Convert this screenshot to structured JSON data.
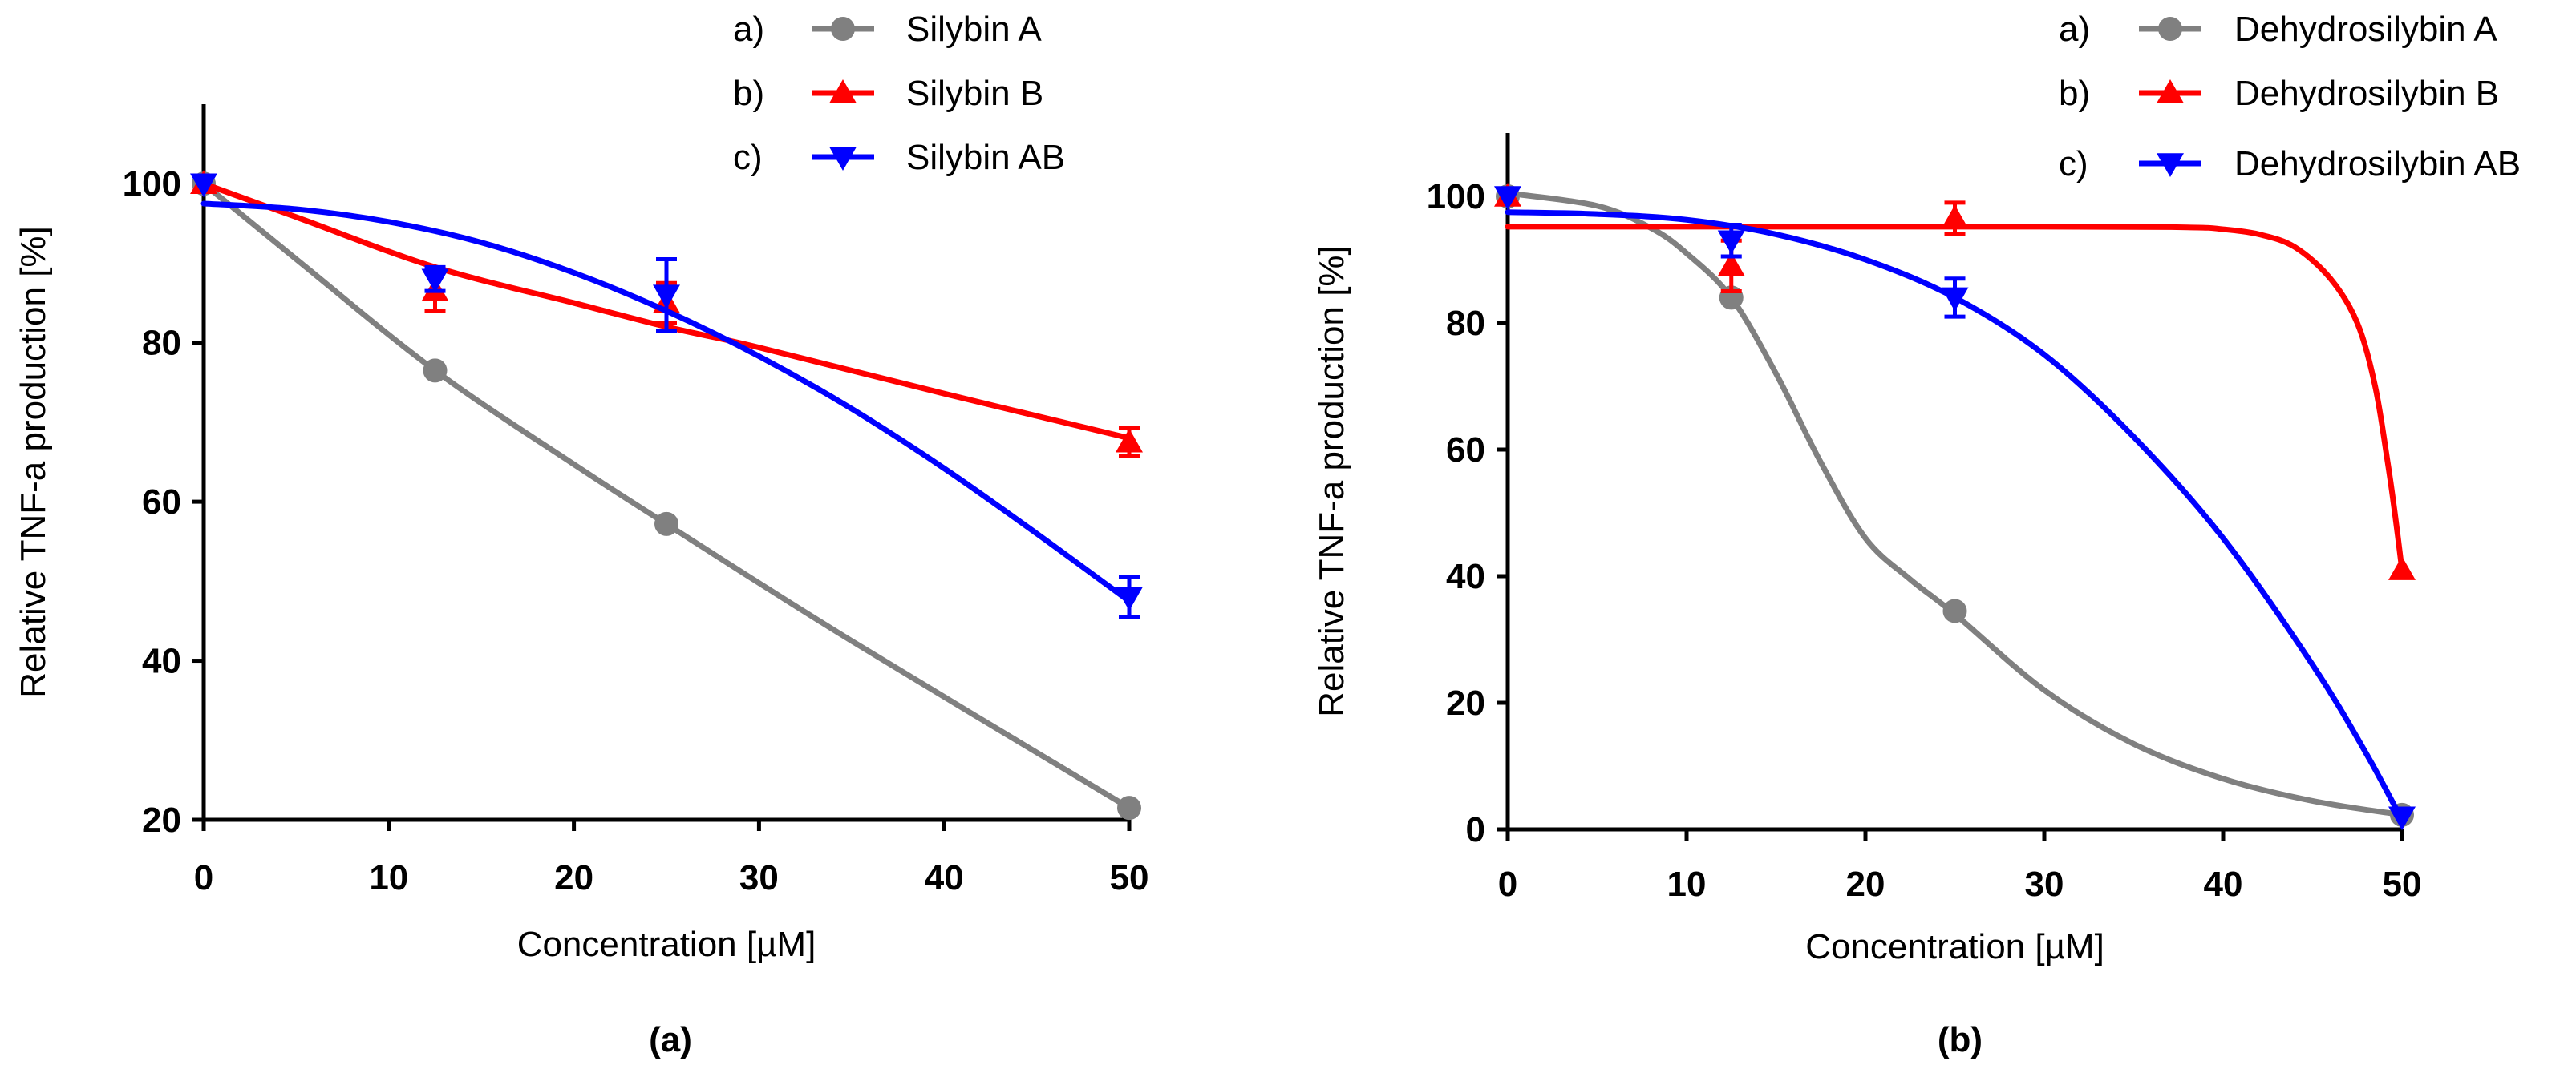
{
  "chart_data": [
    {
      "type": "line",
      "panel_label": "(a)",
      "xlabel": "Concentration [µM]",
      "ylabel": "Relative TNF-a production [%]",
      "xlim": [
        0,
        50
      ],
      "ylim": [
        20,
        110
      ],
      "xticks": [
        0,
        10,
        20,
        30,
        40,
        50
      ],
      "yticks": [
        20,
        40,
        60,
        80,
        100
      ],
      "legend_position": "top-right",
      "series": [
        {
          "name": "Silybin A",
          "prefix": "a)",
          "color": "#808080",
          "marker": "circle",
          "points": [
            {
              "x": 0,
              "y": 100,
              "err": 0
            },
            {
              "x": 12.5,
              "y": 76.5,
              "err": 0
            },
            {
              "x": 25,
              "y": 57.2,
              "err": 0
            },
            {
              "x": 50,
              "y": 21.5,
              "err": 0
            }
          ],
          "curve": [
            [
              0,
              100
            ],
            [
              5,
              90.5
            ],
            [
              12.5,
              76.5
            ],
            [
              20,
              64.7
            ],
            [
              25,
              57.2
            ],
            [
              35,
              42.5
            ],
            [
              50,
              21.5
            ]
          ]
        },
        {
          "name": "Silybin B",
          "prefix": "b)",
          "color": "#ff0000",
          "marker": "triangle-up",
          "points": [
            {
              "x": 0,
              "y": 100,
              "err": 0
            },
            {
              "x": 12.5,
              "y": 86.5,
              "err": 2.5
            },
            {
              "x": 25,
              "y": 85,
              "err": 2.5
            },
            {
              "x": 50,
              "y": 67.5,
              "err": 1.8
            }
          ],
          "curve": [
            [
              0,
              100
            ],
            [
              5,
              95.8
            ],
            [
              12.5,
              89.5
            ],
            [
              20,
              85
            ],
            [
              25,
              82
            ],
            [
              30,
              79.4
            ],
            [
              40,
              73.6
            ],
            [
              50,
              68
            ]
          ]
        },
        {
          "name": "Silybin AB",
          "prefix": "c)",
          "color": "#0000ff",
          "marker": "triangle-down",
          "points": [
            {
              "x": 0,
              "y": 100,
              "err": 0
            },
            {
              "x": 12.5,
              "y": 88,
              "err": 1.5
            },
            {
              "x": 25,
              "y": 86,
              "err": 4.5
            },
            {
              "x": 50,
              "y": 48,
              "err": 2.5
            }
          ],
          "curve": [
            [
              0,
              97.5
            ],
            [
              5,
              96.8
            ],
            [
              10,
              95.2
            ],
            [
              15,
              92.6
            ],
            [
              20,
              88.8
            ],
            [
              25,
              84
            ],
            [
              30,
              78.3
            ],
            [
              35,
              71.7
            ],
            [
              40,
              64.2
            ],
            [
              45,
              56
            ],
            [
              50,
              47.5
            ]
          ]
        }
      ]
    },
    {
      "type": "line",
      "panel_label": "(b)",
      "xlabel": "Concentration [µM]",
      "ylabel": "Relative TNF-a production [%]",
      "xlim": [
        0,
        50
      ],
      "ylim": [
        0,
        110
      ],
      "xticks": [
        0,
        10,
        20,
        30,
        40,
        50
      ],
      "yticks": [
        0,
        20,
        40,
        60,
        80,
        100
      ],
      "legend_position": "top-right",
      "series": [
        {
          "name": "Dehydrosilybin A",
          "prefix": "a)",
          "color": "#808080",
          "marker": "circle",
          "points": [
            {
              "x": 0,
              "y": 100,
              "err": 0
            },
            {
              "x": 12.5,
              "y": 84,
              "err": 0
            },
            {
              "x": 25,
              "y": 34.5,
              "err": 0
            },
            {
              "x": 50,
              "y": 2.3,
              "err": 0
            }
          ],
          "curve": [
            [
              0,
              100.5
            ],
            [
              5,
              98.5
            ],
            [
              8,
              95
            ],
            [
              10,
              91
            ],
            [
              12.5,
              84
            ],
            [
              15,
              72
            ],
            [
              17.5,
              58
            ],
            [
              20,
              46
            ],
            [
              22.5,
              39.5
            ],
            [
              25,
              34
            ],
            [
              30,
              22
            ],
            [
              35,
              13.5
            ],
            [
              40,
              8
            ],
            [
              45,
              4.5
            ],
            [
              50,
              2.3
            ]
          ]
        },
        {
          "name": "Dehydrosilybin B",
          "prefix": "b)",
          "color": "#ff0000",
          "marker": "triangle-up",
          "points": [
            {
              "x": 0,
              "y": 100,
              "err": 0
            },
            {
              "x": 12.5,
              "y": 89,
              "err": 4
            },
            {
              "x": 25,
              "y": 96.5,
              "err": 2.5
            },
            {
              "x": 50,
              "y": 41,
              "err": 0
            }
          ],
          "curve": [
            [
              0,
              95.2
            ],
            [
              30,
              95.2
            ],
            [
              38,
              95.1
            ],
            [
              40,
              94.8
            ],
            [
              42,
              94
            ],
            [
              44,
              92
            ],
            [
              46,
              87
            ],
            [
              47.5,
              80
            ],
            [
              48.5,
              70
            ],
            [
              49.2,
              58
            ],
            [
              49.6,
              50
            ],
            [
              50,
              41
            ]
          ]
        },
        {
          "name": "Dehydrosilybin AB",
          "prefix": "c)",
          "color": "#0000ff",
          "marker": "triangle-down",
          "points": [
            {
              "x": 0,
              "y": 100,
              "err": 0
            },
            {
              "x": 12.5,
              "y": 93,
              "err": 2.5
            },
            {
              "x": 25,
              "y": 84,
              "err": 3
            },
            {
              "x": 50,
              "y": 2,
              "err": 0
            }
          ],
          "curve": [
            [
              0,
              97.5
            ],
            [
              5,
              97.2
            ],
            [
              10,
              96.3
            ],
            [
              15,
              94
            ],
            [
              20,
              90
            ],
            [
              25,
              84
            ],
            [
              30,
              75
            ],
            [
              35,
              62
            ],
            [
              40,
              46
            ],
            [
              45,
              26
            ],
            [
              48,
              12
            ],
            [
              50,
              1.5
            ]
          ]
        }
      ]
    }
  ]
}
